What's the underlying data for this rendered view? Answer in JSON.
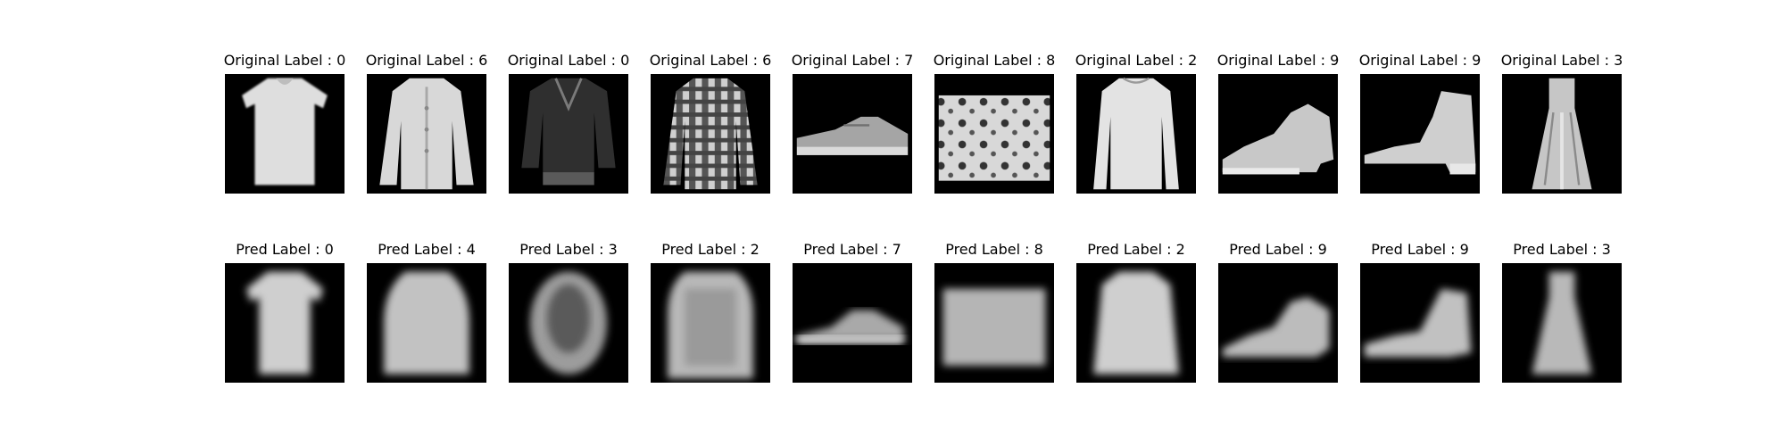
{
  "figure": {
    "rows": [
      {
        "panels": [
          {
            "title": "Original Label : 0",
            "image": "original-tshirt"
          },
          {
            "title": "Original Label : 6",
            "image": "original-shirt"
          },
          {
            "title": "Original Label : 0",
            "image": "original-dark-top"
          },
          {
            "title": "Original Label : 6",
            "image": "original-checkered-shirt"
          },
          {
            "title": "Original Label : 7",
            "image": "original-sneaker"
          },
          {
            "title": "Original Label : 8",
            "image": "original-bag"
          },
          {
            "title": "Original Label : 2",
            "image": "original-pullover"
          },
          {
            "title": "Original Label : 9",
            "image": "original-ankle-boot"
          },
          {
            "title": "Original Label : 9",
            "image": "original-ankle-boot-2"
          },
          {
            "title": "Original Label : 3",
            "image": "original-dress"
          }
        ]
      },
      {
        "panels": [
          {
            "title": "Pred Label : 0",
            "image": "reconstructed-tshirt"
          },
          {
            "title": "Pred Label : 4",
            "image": "reconstructed-coat"
          },
          {
            "title": "Pred Label : 3",
            "image": "reconstructed-dark-top"
          },
          {
            "title": "Pred Label : 2",
            "image": "reconstructed-pullover"
          },
          {
            "title": "Pred Label : 7",
            "image": "reconstructed-sneaker"
          },
          {
            "title": "Pred Label : 8",
            "image": "reconstructed-bag"
          },
          {
            "title": "Pred Label : 2",
            "image": "reconstructed-pullover-2"
          },
          {
            "title": "Pred Label : 9",
            "image": "reconstructed-ankle-boot"
          },
          {
            "title": "Pred Label : 9",
            "image": "reconstructed-ankle-boot-2"
          },
          {
            "title": "Pred Label : 3",
            "image": "reconstructed-dress"
          }
        ]
      }
    ],
    "colors": {
      "background": "#ffffff",
      "image_background": "#000000",
      "garment_light": "#dcdcdc",
      "garment_mid": "#b0b0b0",
      "garment_dark": "#3a3a3a"
    }
  }
}
